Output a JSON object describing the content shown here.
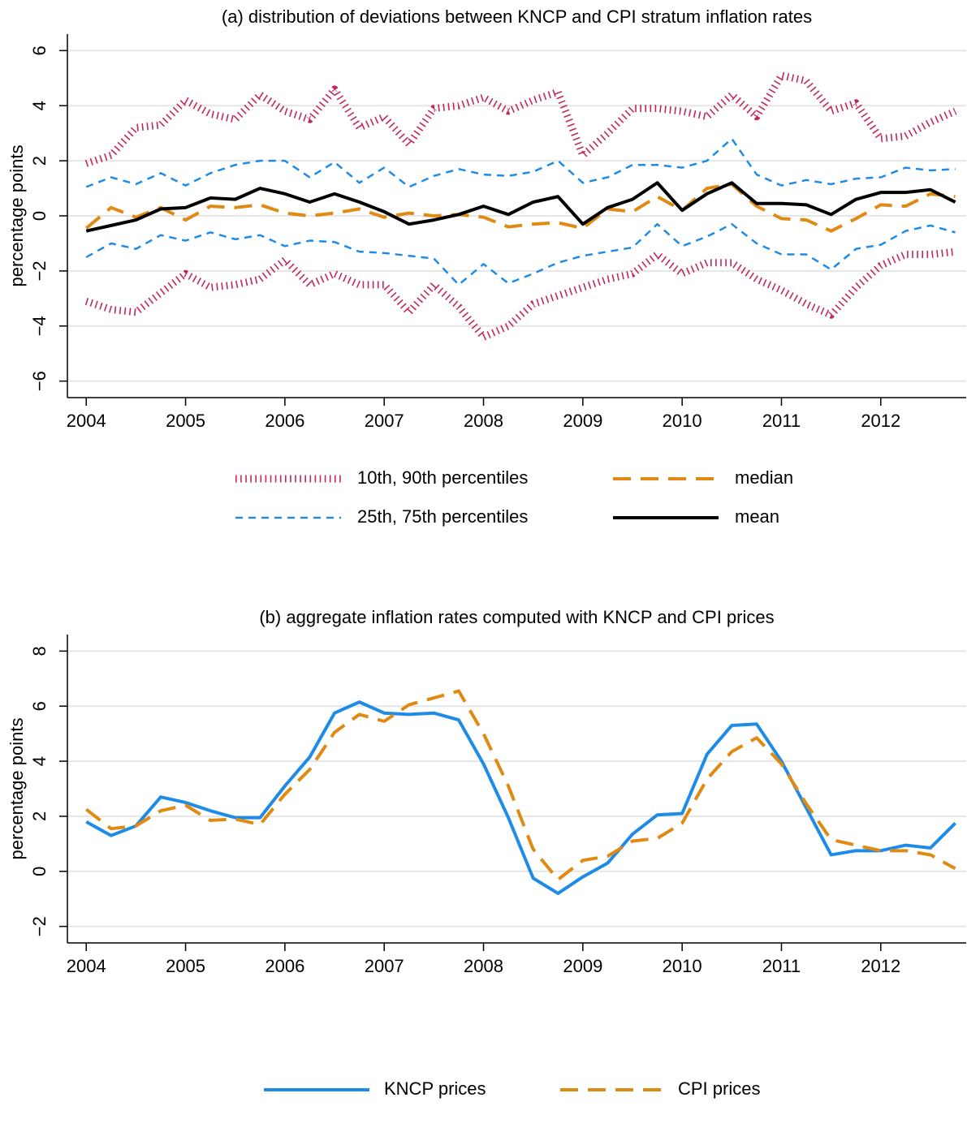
{
  "chart_data": [
    {
      "type": "line",
      "title": "(a) distribution of deviations between KNCP and CPI stratum inflation rates",
      "y_label": "percentage points",
      "x": [
        2004,
        2004.25,
        2004.5,
        2004.75,
        2005,
        2005.25,
        2005.5,
        2005.75,
        2006,
        2006.25,
        2006.5,
        2006.75,
        2007,
        2007.25,
        2007.5,
        2007.75,
        2008,
        2008.25,
        2008.5,
        2008.75,
        2009,
        2009.25,
        2009.5,
        2009.75,
        2010,
        2010.25,
        2010.5,
        2010.75,
        2011,
        2011.25,
        2011.5,
        2011.75,
        2012,
        2012.25,
        2012.5,
        2012.75
      ],
      "xlim": [
        2003.81,
        2012.86
      ],
      "xticks": [
        2004,
        2005,
        2006,
        2007,
        2008,
        2009,
        2010,
        2011,
        2012
      ],
      "ylim": [
        -6.6,
        6.6
      ],
      "yticks": [
        {
          "value": -6,
          "label": "−6"
        },
        {
          "value": -4,
          "label": "−4"
        },
        {
          "value": -2,
          "label": "−2"
        },
        0,
        2,
        4,
        6
      ],
      "grid": true,
      "series": [
        {
          "name": "10th, 90th percentiles",
          "color": "#c0285a",
          "style": "dotted",
          "lines": [
            [
              -3.1,
              -3.4,
              -3.5,
              -2.8,
              -2.1,
              -2.6,
              -2.5,
              -2.3,
              -1.6,
              -2.5,
              -2.1,
              -2.5,
              -2.5,
              -3.5,
              -2.5,
              -3.3,
              -4.4,
              -4.0,
              -3.2,
              -2.9,
              -2.6,
              -2.3,
              -2.1,
              -1.4,
              -2.1,
              -1.7,
              -1.7,
              -2.3,
              -2.7,
              -3.2,
              -3.6,
              -2.6,
              -1.8,
              -1.4,
              -1.4,
              -1.3
            ],
            [
              1.9,
              2.2,
              3.2,
              3.3,
              4.2,
              3.7,
              3.5,
              4.4,
              3.8,
              3.5,
              4.6,
              3.2,
              3.6,
              2.6,
              3.9,
              4.0,
              4.3,
              3.8,
              4.2,
              4.5,
              2.2,
              3.0,
              3.9,
              3.9,
              3.8,
              3.6,
              4.4,
              3.6,
              5.1,
              4.9,
              3.8,
              4.1,
              2.8,
              2.9,
              3.4,
              3.8
            ]
          ]
        },
        {
          "name": "median",
          "color": "#e08a14",
          "style": "longdash",
          "lines": [
            [
              -0.45,
              0.3,
              -0.05,
              0.3,
              -0.15,
              0.35,
              0.3,
              0.4,
              0.1,
              0.0,
              0.1,
              0.25,
              -0.05,
              0.1,
              0.0,
              0.05,
              -0.05,
              -0.4,
              -0.3,
              -0.25,
              -0.45,
              0.25,
              0.15,
              0.7,
              0.2,
              1.0,
              1.15,
              0.35,
              -0.1,
              -0.15,
              -0.55,
              -0.1,
              0.4,
              0.35,
              0.8,
              0.7
            ]
          ]
        },
        {
          "name": "25th, 75th percentiles",
          "color": "#1e8ce6",
          "style": "dashed",
          "lines": [
            [
              -1.5,
              -1.0,
              -1.2,
              -0.7,
              -0.9,
              -0.6,
              -0.85,
              -0.7,
              -1.1,
              -0.9,
              -0.95,
              -1.3,
              -1.35,
              -1.45,
              -1.55,
              -2.5,
              -1.75,
              -2.45,
              -2.1,
              -1.7,
              -1.45,
              -1.3,
              -1.15,
              -0.3,
              -1.1,
              -0.75,
              -0.3,
              -1.0,
              -1.4,
              -1.4,
              -1.95,
              -1.2,
              -1.05,
              -0.55,
              -0.35,
              -0.6
            ],
            [
              1.05,
              1.4,
              1.15,
              1.55,
              1.1,
              1.55,
              1.85,
              2.0,
              2.0,
              1.4,
              1.95,
              1.2,
              1.75,
              1.05,
              1.45,
              1.7,
              1.5,
              1.45,
              1.6,
              2.0,
              1.2,
              1.4,
              1.85,
              1.85,
              1.75,
              2.0,
              2.8,
              1.5,
              1.1,
              1.3,
              1.15,
              1.35,
              1.4,
              1.75,
              1.65,
              1.7
            ]
          ]
        },
        {
          "name": "mean",
          "color": "#000000",
          "style": "solid",
          "lines": [
            [
              -0.55,
              -0.35,
              -0.15,
              0.25,
              0.3,
              0.65,
              0.6,
              1.0,
              0.8,
              0.5,
              0.8,
              0.5,
              0.15,
              -0.3,
              -0.15,
              0.05,
              0.35,
              0.05,
              0.5,
              0.7,
              -0.3,
              0.3,
              0.6,
              1.2,
              0.2,
              0.8,
              1.2,
              0.45,
              0.45,
              0.4,
              0.05,
              0.6,
              0.85,
              0.85,
              0.95,
              0.5
            ]
          ]
        }
      ]
    },
    {
      "type": "line",
      "title": "(b) aggregate inflation rates computed with KNCP and CPI prices",
      "y_label": "percentage points",
      "x": [
        2004,
        2004.25,
        2004.5,
        2004.75,
        2005,
        2005.25,
        2005.5,
        2005.75,
        2006,
        2006.25,
        2006.5,
        2006.75,
        2007,
        2007.25,
        2007.5,
        2007.75,
        2008,
        2008.25,
        2008.5,
        2008.75,
        2009,
        2009.25,
        2009.5,
        2009.75,
        2010,
        2010.25,
        2010.5,
        2010.75,
        2011,
        2011.25,
        2011.5,
        2011.75,
        2012,
        2012.25,
        2012.5,
        2012.75
      ],
      "xlim": [
        2003.81,
        2012.86
      ],
      "xticks": [
        2004,
        2005,
        2006,
        2007,
        2008,
        2009,
        2010,
        2011,
        2012
      ],
      "ylim": [
        -2.6,
        8.6
      ],
      "yticks": [
        {
          "value": -2,
          "label": "−2"
        },
        0,
        2,
        4,
        6,
        8
      ],
      "grid": true,
      "series": [
        {
          "name": "KNCP prices",
          "color": "#1e8ce6",
          "style": "solid",
          "lines": [
            [
              1.8,
              1.3,
              1.65,
              2.7,
              2.5,
              2.2,
              1.95,
              1.95,
              3.1,
              4.15,
              5.75,
              6.15,
              5.75,
              5.7,
              5.75,
              5.5,
              3.9,
              1.95,
              -0.25,
              -0.8,
              -0.2,
              0.3,
              1.35,
              2.05,
              2.1,
              4.25,
              5.3,
              5.35,
              4.0,
              2.3,
              0.6,
              0.75,
              0.75,
              0.95,
              0.85,
              1.75
            ]
          ]
        },
        {
          "name": "CPI prices",
          "color": "#e08a14",
          "style": "longdash",
          "lines": [
            [
              2.25,
              1.55,
              1.65,
              2.2,
              2.4,
              1.85,
              1.9,
              1.7,
              2.8,
              3.7,
              5.05,
              5.7,
              5.45,
              6.05,
              6.3,
              6.55,
              5.0,
              3.1,
              0.8,
              -0.3,
              0.4,
              0.55,
              1.1,
              1.2,
              1.75,
              3.35,
              4.35,
              4.85,
              3.9,
              2.45,
              1.15,
              0.95,
              0.75,
              0.75,
              0.6,
              0.1
            ]
          ]
        }
      ]
    }
  ]
}
